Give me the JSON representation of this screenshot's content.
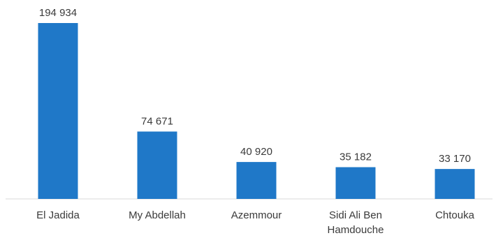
{
  "chart_data": {
    "type": "bar",
    "categories": [
      [
        "El Jadida"
      ],
      [
        "My Abdellah"
      ],
      [
        "Azemmour"
      ],
      [
        "Sidi Ali Ben",
        "Hamdouche"
      ],
      [
        "Chtouka"
      ]
    ],
    "values": [
      194934,
      74671,
      40920,
      35182,
      33170
    ],
    "value_labels": [
      "194 934",
      "74 671",
      "40 920",
      "35 182",
      "33 170"
    ],
    "title": "",
    "xlabel": "",
    "ylabel": "",
    "ylim": [
      0,
      200000
    ],
    "grid": false,
    "legend": "none",
    "colors": {
      "bar": "#1f78c8",
      "axis": "#d9d9d9",
      "text": "#3a3a3a"
    }
  }
}
